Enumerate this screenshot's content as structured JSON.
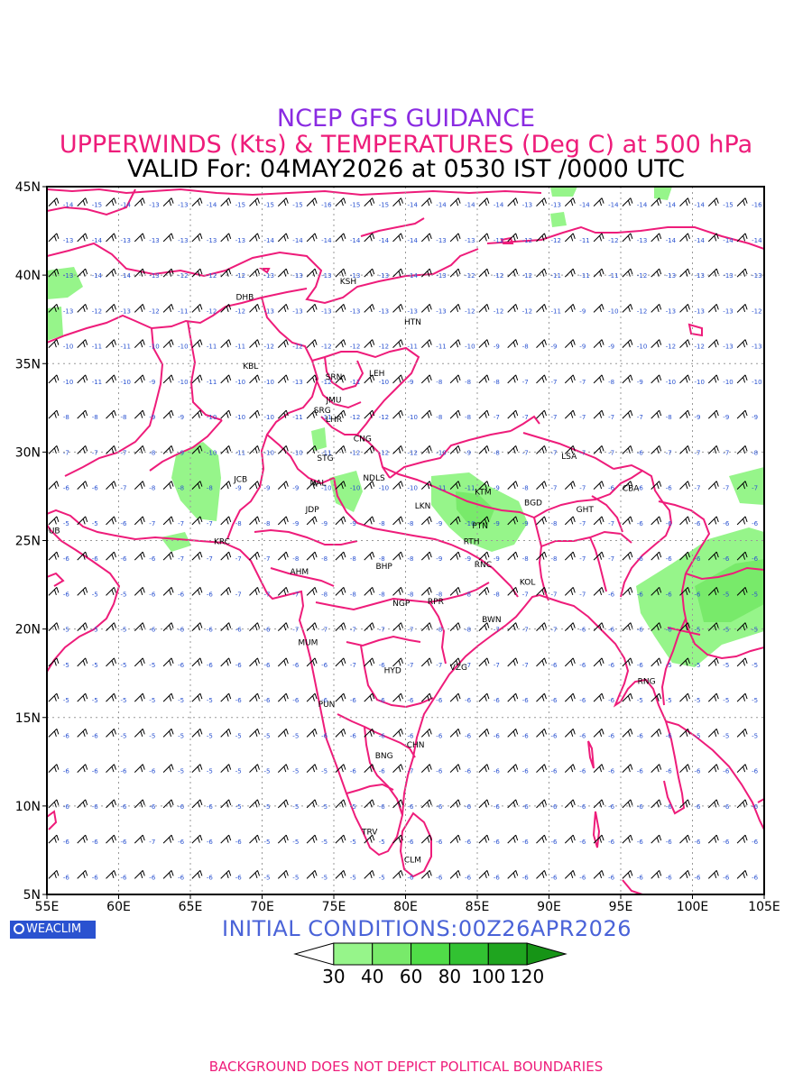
{
  "titles": {
    "line1": "NCEP GFS GUIDANCE",
    "line2": "UPPERWINDS (Kts) & TEMPERATURES (Deg C) at 500 hPa",
    "line3": "VALID For: 04MAY2026 at 0530 IST /0000 UTC"
  },
  "map": {
    "lon_range": [
      55,
      105
    ],
    "lat_range": [
      5,
      45
    ],
    "lon_ticks": [
      "55E",
      "60E",
      "65E",
      "70E",
      "75E",
      "80E",
      "85E",
      "90E",
      "95E",
      "100E",
      "105E"
    ],
    "lat_ticks": [
      "45N",
      "40N",
      "35N",
      "30N",
      "25N",
      "20N",
      "15N",
      "10N",
      "5N"
    ],
    "grid": "dotted",
    "colors": {
      "boundary": "#ee1c7a",
      "frame": "#000000",
      "grid": "#999999",
      "temperature": "#2a52d0",
      "barb": "#000000"
    },
    "stations": [
      {
        "code": "KSH",
        "lon": 76.0,
        "lat": 39.5
      },
      {
        "code": "DHB",
        "lon": 68.8,
        "lat": 38.6
      },
      {
        "code": "HTN",
        "lon": 80.5,
        "lat": 37.2
      },
      {
        "code": "KBL",
        "lon": 69.2,
        "lat": 34.7
      },
      {
        "code": "LEH",
        "lon": 78.0,
        "lat": 34.3
      },
      {
        "code": "SRN",
        "lon": 75.0,
        "lat": 34.1
      },
      {
        "code": "JMU",
        "lon": 75.0,
        "lat": 32.8
      },
      {
        "code": "SRG",
        "lon": 74.2,
        "lat": 32.2
      },
      {
        "code": "LHR",
        "lon": 75.0,
        "lat": 31.7
      },
      {
        "code": "CNG",
        "lon": 77.0,
        "lat": 30.6
      },
      {
        "code": "LSA",
        "lon": 91.4,
        "lat": 29.6
      },
      {
        "code": "STG",
        "lon": 74.4,
        "lat": 29.5
      },
      {
        "code": "JCB",
        "lon": 68.5,
        "lat": 28.3
      },
      {
        "code": "NAL",
        "lon": 73.9,
        "lat": 28.1
      },
      {
        "code": "NDLS",
        "lon": 77.8,
        "lat": 28.4
      },
      {
        "code": "KTM",
        "lon": 85.4,
        "lat": 27.6
      },
      {
        "code": "CBA",
        "lon": 95.7,
        "lat": 27.8
      },
      {
        "code": "BGD",
        "lon": 88.9,
        "lat": 27.0
      },
      {
        "code": "GHT",
        "lon": 92.5,
        "lat": 26.6
      },
      {
        "code": "JDP",
        "lon": 73.5,
        "lat": 26.6
      },
      {
        "code": "LKN",
        "lon": 81.2,
        "lat": 26.8
      },
      {
        "code": "PTN",
        "lon": 85.2,
        "lat": 25.7
      },
      {
        "code": "DUB",
        "lon": 55.3,
        "lat": 25.4
      },
      {
        "code": "RTH",
        "lon": 84.6,
        "lat": 24.8
      },
      {
        "code": "KRC",
        "lon": 67.2,
        "lat": 24.8
      },
      {
        "code": "BHP",
        "lon": 78.5,
        "lat": 23.4
      },
      {
        "code": "AHM",
        "lon": 72.6,
        "lat": 23.1
      },
      {
        "code": "RNC",
        "lon": 85.4,
        "lat": 23.5
      },
      {
        "code": "KOL",
        "lon": 88.5,
        "lat": 22.5
      },
      {
        "code": "NGP",
        "lon": 79.7,
        "lat": 21.3
      },
      {
        "code": "RPR",
        "lon": 82.1,
        "lat": 21.4
      },
      {
        "code": "BWN",
        "lon": 86.0,
        "lat": 20.4
      },
      {
        "code": "MUM",
        "lon": 73.2,
        "lat": 19.1
      },
      {
        "code": "HYD",
        "lon": 79.1,
        "lat": 17.5
      },
      {
        "code": "VZG",
        "lon": 83.7,
        "lat": 17.7
      },
      {
        "code": "RNG",
        "lon": 96.8,
        "lat": 16.9
      },
      {
        "code": "PUN",
        "lon": 74.5,
        "lat": 15.6
      },
      {
        "code": "CHN",
        "lon": 80.7,
        "lat": 13.3
      },
      {
        "code": "BNG",
        "lon": 78.5,
        "lat": 12.7
      },
      {
        "code": "TRV",
        "lon": 77.5,
        "lat": 8.4
      },
      {
        "code": "CLM",
        "lon": 80.5,
        "lat": 6.8
      }
    ],
    "temperature_rows": [
      {
        "lat": 44,
        "values": [
          "-14",
          "-15",
          "-14",
          "-13",
          "-13",
          "-14",
          "-15",
          "-15",
          "-15",
          "-16",
          "-15",
          "-15",
          "-14",
          "-14",
          "-14",
          "-14",
          "-13",
          "-13",
          "-14",
          "-14",
          "-14",
          "-14",
          "-14",
          "-15",
          "-16"
        ]
      },
      {
        "lat": 42,
        "values": [
          "-13",
          "-14",
          "-13",
          "-13",
          "-13",
          "-13",
          "-13",
          "-14",
          "-14",
          "-14",
          "-14",
          "-14",
          "-14",
          "-13",
          "-13",
          "-12",
          "-12",
          "-12",
          "-11",
          "-12",
          "-13",
          "-14",
          "-14",
          "-14",
          "-14"
        ]
      },
      {
        "lat": 40,
        "values": [
          "-13",
          "-14",
          "-14",
          "-13",
          "-12",
          "-12",
          "-12",
          "-13",
          "-13",
          "-13",
          "-13",
          "-13",
          "-14",
          "-13",
          "-12",
          "-12",
          "-12",
          "-11",
          "-11",
          "-11",
          "-12",
          "-13",
          "-13",
          "-13",
          "-13"
        ]
      },
      {
        "lat": 38,
        "values": [
          "-13",
          "-12",
          "-13",
          "-12",
          "-11",
          "-12",
          "-12",
          "-13",
          "-13",
          "-13",
          "-13",
          "-13",
          "-13",
          "-13",
          "-12",
          "-12",
          "-12",
          "-11",
          "-9",
          "-10",
          "-12",
          "-13",
          "-13",
          "-13",
          "-12"
        ]
      },
      {
        "lat": 36,
        "values": [
          "-10",
          "-11",
          "-11",
          "-10",
          "-10",
          "-11",
          "-11",
          "-12",
          "-12",
          "-12",
          "-12",
          "-12",
          "-11",
          "-11",
          "-10",
          "-9",
          "-8",
          "-9",
          "-9",
          "-9",
          "-10",
          "-12",
          "-12",
          "-13",
          "-13"
        ]
      },
      {
        "lat": 34,
        "values": [
          "-10",
          "-11",
          "-10",
          "-9",
          "-10",
          "-11",
          "-10",
          "-10",
          "-13",
          "-12",
          "-11",
          "-10",
          "-9",
          "-8",
          "-8",
          "-8",
          "-7",
          "-7",
          "-7",
          "-8",
          "-9",
          "-10",
          "-10",
          "-10",
          "-10"
        ]
      },
      {
        "lat": 32,
        "values": [
          "-8",
          "-8",
          "-8",
          "-9",
          "-9",
          "-10",
          "-10",
          "-10",
          "-11",
          "-11",
          "-12",
          "-12",
          "-10",
          "-8",
          "-8",
          "-7",
          "-7",
          "-7",
          "-7",
          "-7",
          "-7",
          "-8",
          "-9",
          "-9",
          "-9"
        ]
      },
      {
        "lat": 30,
        "values": [
          "-7",
          "-7",
          "-7",
          "-8",
          "-9",
          "-10",
          "-11",
          "-10",
          "-10",
          "-11",
          "-12",
          "-12",
          "-12",
          "-10",
          "-9",
          "-8",
          "-7",
          "-7",
          "-7",
          "-7",
          "-6",
          "-7",
          "-7",
          "-7",
          "-8"
        ]
      },
      {
        "lat": 28,
        "values": [
          "-6",
          "-6",
          "-7",
          "-8",
          "-8",
          "-8",
          "-9",
          "-9",
          "-9",
          "-10",
          "-10",
          "-10",
          "-10",
          "-11",
          "-11",
          "-9",
          "-8",
          "-7",
          "-7",
          "-6",
          "-6",
          "-6",
          "-7",
          "-7",
          "-7"
        ]
      },
      {
        "lat": 26,
        "values": [
          "-5",
          "-5",
          "-6",
          "-7",
          "-7",
          "-7",
          "-8",
          "-8",
          "-9",
          "-9",
          "-9",
          "-8",
          "-8",
          "-9",
          "-10",
          "-9",
          "-9",
          "-8",
          "-7",
          "-7",
          "-6",
          "-6",
          "-6",
          "-6",
          "-6"
        ]
      },
      {
        "lat": 24,
        "values": [
          "-6",
          "-6",
          "-6",
          "-6",
          "-7",
          "-7",
          "-7",
          "-7",
          "-8",
          "-8",
          "-8",
          "-8",
          "-8",
          "-9",
          "-9",
          "-9",
          "-8",
          "-8",
          "-7",
          "-7",
          "-6",
          "-6",
          "-6",
          "-6",
          "-6"
        ]
      },
      {
        "lat": 22,
        "values": [
          "-6",
          "-5",
          "-5",
          "-6",
          "-6",
          "-6",
          "-7",
          "-7",
          "-7",
          "-8",
          "-8",
          "-8",
          "-8",
          "-8",
          "-8",
          "-8",
          "-7",
          "-7",
          "-7",
          "-6",
          "-6",
          "-6",
          "-6",
          "-5",
          "-5"
        ]
      },
      {
        "lat": 20,
        "values": [
          "-5",
          "-5",
          "-5",
          "-6",
          "-6",
          "-6",
          "-6",
          "-6",
          "-7",
          "-7",
          "-7",
          "-7",
          "-7",
          "-8",
          "-8",
          "-7",
          "-7",
          "-7",
          "-6",
          "-6",
          "-6",
          "-6",
          "-5",
          "-5",
          "-5"
        ]
      },
      {
        "lat": 18,
        "values": [
          "-5",
          "-5",
          "-5",
          "-5",
          "-6",
          "-6",
          "-6",
          "-6",
          "-6",
          "-6",
          "-7",
          "-6",
          "-7",
          "-7",
          "-7",
          "-7",
          "-7",
          "-6",
          "-6",
          "-6",
          "-6",
          "-5",
          "-5",
          "-5",
          "-5"
        ]
      },
      {
        "lat": 16,
        "values": [
          "-5",
          "-5",
          "-5",
          "-5",
          "-5",
          "-5",
          "-6",
          "-6",
          "-6",
          "-6",
          "-6",
          "-6",
          "-6",
          "-6",
          "-6",
          "-6",
          "-6",
          "-6",
          "-6",
          "-6",
          "-5",
          "-5",
          "-5",
          "-5",
          "-5"
        ]
      },
      {
        "lat": 14,
        "values": [
          "-6",
          "-6",
          "-5",
          "-5",
          "-5",
          "-5",
          "-5",
          "-5",
          "-5",
          "-6",
          "-6",
          "-6",
          "-6",
          "-6",
          "-6",
          "-6",
          "-6",
          "-6",
          "-6",
          "-6",
          "-6",
          "-6",
          "-5",
          "-5",
          "-5"
        ]
      },
      {
        "lat": 12,
        "values": [
          "-6",
          "-6",
          "-6",
          "-6",
          "-5",
          "-5",
          "-5",
          "-5",
          "-5",
          "-5",
          "-6",
          "-6",
          "-7",
          "-6",
          "-6",
          "-6",
          "-6",
          "-6",
          "-6",
          "-6",
          "-6",
          "-6",
          "-6",
          "-6",
          "-6"
        ]
      },
      {
        "lat": 10,
        "values": [
          "-6",
          "-6",
          "-6",
          "-6",
          "-6",
          "-6",
          "-5",
          "-5",
          "-5",
          "-5",
          "-5",
          "-6",
          "-6",
          "-6",
          "-6",
          "-6",
          "-6",
          "-6",
          "-6",
          "-6",
          "-6",
          "-6",
          "-6",
          "-6",
          "-6"
        ]
      },
      {
        "lat": 8,
        "values": [
          "-6",
          "-6",
          "-6",
          "-7",
          "-6",
          "-6",
          "-6",
          "-5",
          "-5",
          "-5",
          "-5",
          "-5",
          "-6",
          "-6",
          "-6",
          "-6",
          "-6",
          "-6",
          "-6",
          "-6",
          "-6",
          "-6",
          "-6",
          "-6",
          "-6"
        ]
      },
      {
        "lat": 6,
        "values": [
          "-6",
          "-6",
          "-6",
          "-6",
          "-6",
          "-6",
          "-6",
          "-5",
          "-5",
          "-5",
          "-5",
          "-5",
          "-6",
          "-6",
          "-6",
          "-6",
          "-6",
          "-6",
          "-6",
          "-6",
          "-6",
          "-6",
          "-6",
          "-6",
          "-6"
        ]
      }
    ]
  },
  "badge": {
    "label": "WEACLIM",
    "icon": "weaclim-logo-icon"
  },
  "initial_conditions": "INITIAL CONDITIONS:00Z26APR2026",
  "legend": {
    "thresholds": [
      "30",
      "40",
      "60",
      "80",
      "100",
      "120"
    ],
    "colors": [
      "#ffffff",
      "#96f58a",
      "#78ea6a",
      "#50dd48",
      "#32c232",
      "#1fa51f",
      "#169416"
    ]
  },
  "footer": "BACKGROUND DOES NOT DEPICT POLITICAL BOUNDARIES"
}
